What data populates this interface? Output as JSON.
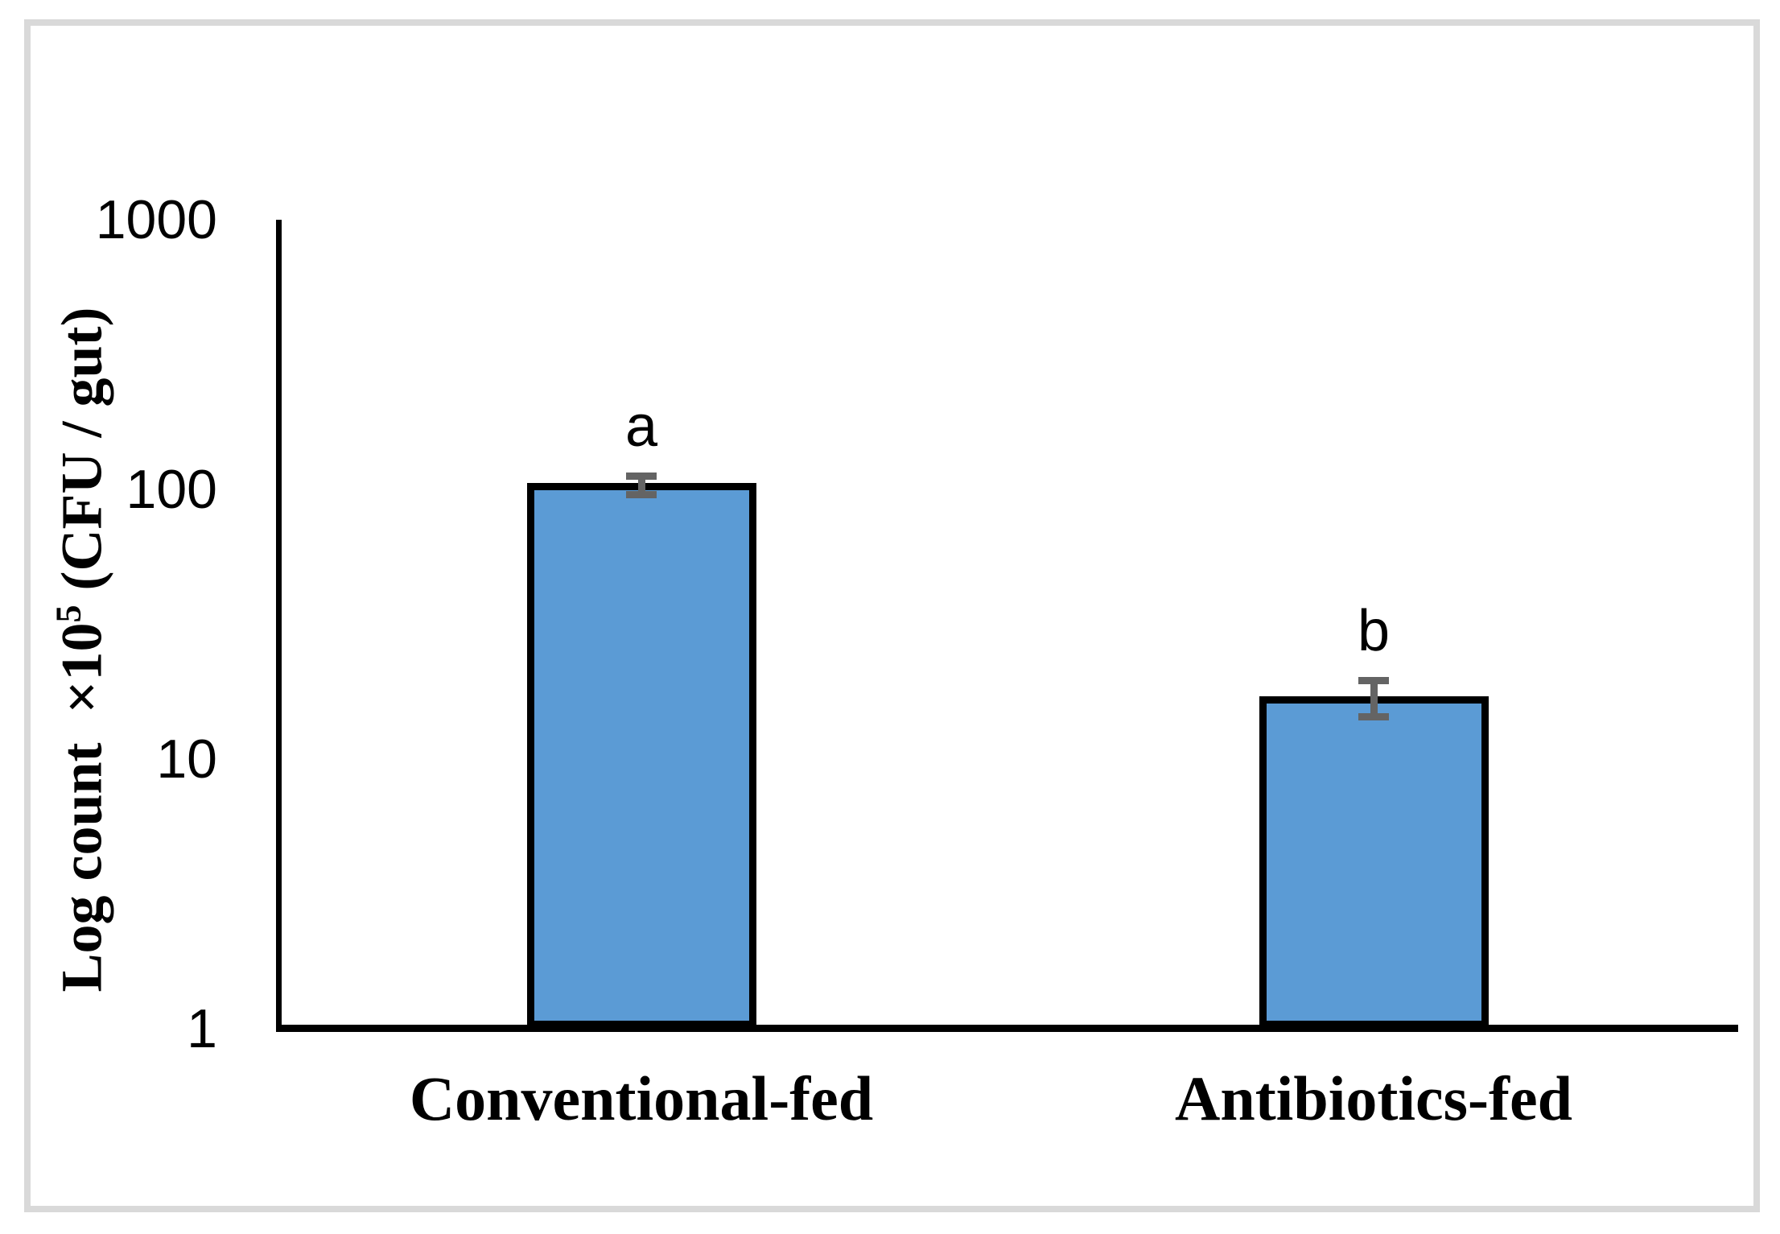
{
  "figure": {
    "background_color": "#FFFFFF",
    "frame_color": "#D9D9D9"
  },
  "chart_data": {
    "type": "bar",
    "title": "",
    "xlabel": "",
    "ylabel": "Log count ×10⁵ (CFU / gut)",
    "ylabel_parts": {
      "prefix": "Log count  ×10",
      "sup": "5",
      "suffix": " (CFU / gut)"
    },
    "yscale": "log",
    "ylim": [
      1,
      1000
    ],
    "yticks": [
      1000,
      100,
      10,
      1
    ],
    "ytick_labels": [
      "1000",
      "100",
      "10",
      "1"
    ],
    "grid": false,
    "legend": false,
    "categories": [
      "Conventional-fed",
      "Antibiotics-fed"
    ],
    "values": [
      105,
      17
    ],
    "error_high": [
      112,
      19.5
    ],
    "error_low": [
      95,
      14.3
    ],
    "bar_labels": [
      "a",
      "b"
    ],
    "colors": {
      "bar_fill": "#5B9BD5",
      "bar_border": "#000000",
      "error_bar": "#646464",
      "axis": "#000000"
    }
  }
}
